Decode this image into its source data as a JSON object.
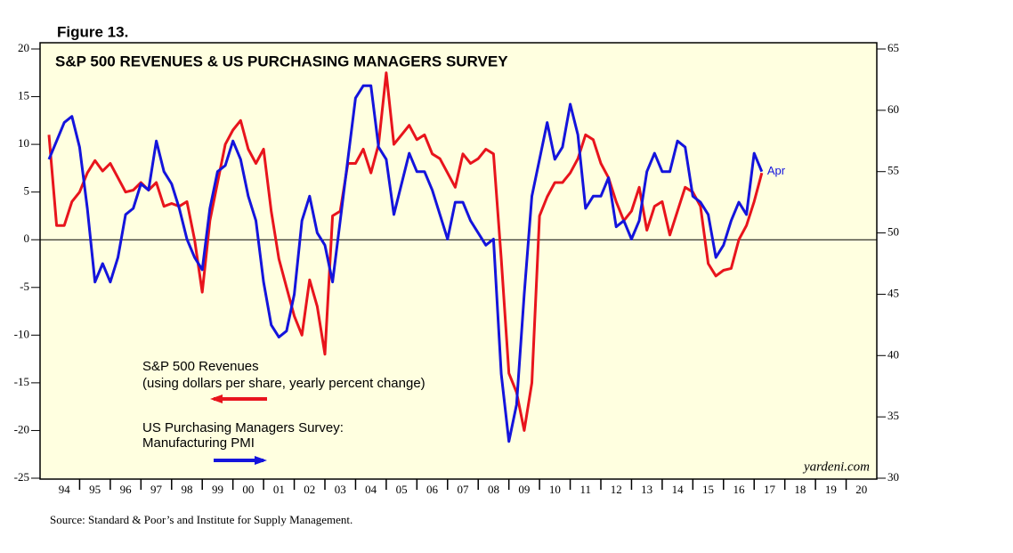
{
  "chart_data": {
    "type": "line",
    "figure_label": "Figure 13.",
    "title": "S&P 500 REVENUES & US PURCHASING MANAGERS SURVEY",
    "source": "Source: Standard & Poor’s and Institute for Supply Management.",
    "watermark": "yardeni.com",
    "end_label": "Apr",
    "x": [
      1994,
      1994.25,
      1994.5,
      1994.75,
      1995,
      1995.25,
      1995.5,
      1995.75,
      1996,
      1996.25,
      1996.5,
      1996.75,
      1997,
      1997.25,
      1997.5,
      1997.75,
      1998,
      1998.25,
      1998.5,
      1998.75,
      1999,
      1999.25,
      1999.5,
      1999.75,
      2000,
      2000.25,
      2000.5,
      2000.75,
      2001,
      2001.25,
      2001.5,
      2001.75,
      2002,
      2002.25,
      2002.5,
      2002.75,
      2003,
      2003.25,
      2003.5,
      2003.75,
      2004,
      2004.25,
      2004.5,
      2004.75,
      2005,
      2005.25,
      2005.5,
      2005.75,
      2006,
      2006.25,
      2006.5,
      2006.75,
      2007,
      2007.25,
      2007.5,
      2007.75,
      2008,
      2008.25,
      2008.5,
      2008.75,
      2009,
      2009.25,
      2009.5,
      2009.75,
      2010,
      2010.25,
      2010.5,
      2010.75,
      2011,
      2011.25,
      2011.5,
      2011.75,
      2012,
      2012.25,
      2012.5,
      2012.75,
      2013,
      2013.25,
      2013.5,
      2013.75,
      2014,
      2014.25,
      2014.5,
      2014.75,
      2015,
      2015.25,
      2015.5,
      2015.75,
      2016,
      2016.25,
      2016.5,
      2016.75,
      2017,
      2017.25
    ],
    "series": [
      {
        "name": "S&P 500 Revenues",
        "note": "(using dollars per share, yearly percent change)",
        "color": "#e8141c",
        "axis": "y",
        "values": [
          11,
          1.5,
          1.5,
          4,
          5,
          7,
          8.3,
          7.2,
          8,
          6.5,
          5,
          5.2,
          6,
          5.2,
          6,
          3.5,
          3.8,
          3.5,
          4,
          0,
          -5.5,
          2,
          6,
          10,
          11.5,
          12.5,
          9.5,
          8,
          9.5,
          3,
          -2,
          -5,
          -8,
          -10,
          -4.2,
          -7,
          -12,
          2.5,
          3,
          8,
          8,
          9.5,
          7,
          10,
          17.5,
          10,
          11,
          12,
          10.5,
          11,
          9,
          8.5,
          7,
          5.5,
          9,
          8,
          8.5,
          9.5,
          9,
          -2,
          -14,
          -16,
          -20,
          -15,
          2.5,
          4.5,
          6,
          6,
          7,
          8.5,
          11,
          10.5,
          8,
          6.5,
          4,
          2,
          3,
          5.5,
          1,
          3.5,
          4,
          0.5,
          3,
          5.5,
          5,
          3.5,
          -2.5,
          -3.8,
          -3.2,
          -3,
          0,
          1.5,
          4,
          7
        ]
      },
      {
        "name": "US Purchasing Managers Survey:",
        "note": "Manufacturing PMI",
        "color": "#1414dc",
        "axis": "y2",
        "values": [
          56,
          57.5,
          59,
          59.5,
          57,
          52,
          46,
          47.5,
          46,
          48,
          51.5,
          52,
          54,
          53.5,
          57.5,
          55,
          54,
          52,
          49.5,
          48,
          47,
          52,
          55,
          55.5,
          57.5,
          56,
          53,
          51,
          46,
          42.5,
          41.5,
          42,
          45,
          51,
          53,
          50,
          49,
          46,
          51,
          56,
          61,
          62,
          62,
          57,
          56,
          51.5,
          54,
          56.5,
          55,
          55,
          53.5,
          51.5,
          49.5,
          52.5,
          52.5,
          51,
          50,
          49,
          49.5,
          38.5,
          33,
          36,
          45,
          53,
          56,
          59,
          56,
          57,
          60.5,
          58,
          52,
          53,
          53,
          54.5,
          50.5,
          51,
          49.5,
          51,
          55,
          56.5,
          55,
          55,
          57.5,
          57,
          53,
          52.5,
          51.5,
          48,
          49,
          51,
          52.5,
          51.5,
          56.5,
          55
        ]
      }
    ],
    "xlim": [
      1994,
      2021
    ],
    "xticks": [
      {
        "value": 1994.5,
        "label": "94"
      },
      {
        "value": 1995.5,
        "label": "95"
      },
      {
        "value": 1996.5,
        "label": "96"
      },
      {
        "value": 1997.5,
        "label": "97"
      },
      {
        "value": 1998.5,
        "label": "98"
      },
      {
        "value": 1999.5,
        "label": "99"
      },
      {
        "value": 2000.5,
        "label": "00"
      },
      {
        "value": 2001.5,
        "label": "01"
      },
      {
        "value": 2002.5,
        "label": "02"
      },
      {
        "value": 2003.5,
        "label": "03"
      },
      {
        "value": 2004.5,
        "label": "04"
      },
      {
        "value": 2005.5,
        "label": "05"
      },
      {
        "value": 2006.5,
        "label": "06"
      },
      {
        "value": 2007.5,
        "label": "07"
      },
      {
        "value": 2008.5,
        "label": "08"
      },
      {
        "value": 2009.5,
        "label": "09"
      },
      {
        "value": 2010.5,
        "label": "10"
      },
      {
        "value": 2011.5,
        "label": "11"
      },
      {
        "value": 2012.5,
        "label": "12"
      },
      {
        "value": 2013.5,
        "label": "13"
      },
      {
        "value": 2014.5,
        "label": "14"
      },
      {
        "value": 2015.5,
        "label": "15"
      },
      {
        "value": 2016.5,
        "label": "16"
      },
      {
        "value": 2017.5,
        "label": "17"
      },
      {
        "value": 2018.5,
        "label": "18"
      },
      {
        "value": 2019.5,
        "label": "19"
      },
      {
        "value": 2020.5,
        "label": "20"
      }
    ],
    "ylim": [
      -25,
      20
    ],
    "yticks": [
      20,
      15,
      10,
      5,
      0,
      -5,
      -10,
      -15,
      -20,
      -25
    ],
    "y2lim": [
      30,
      65
    ],
    "y2ticks": [
      65,
      60,
      55,
      50,
      45,
      40,
      35,
      30
    ],
    "zero_line": true,
    "grid": false
  }
}
